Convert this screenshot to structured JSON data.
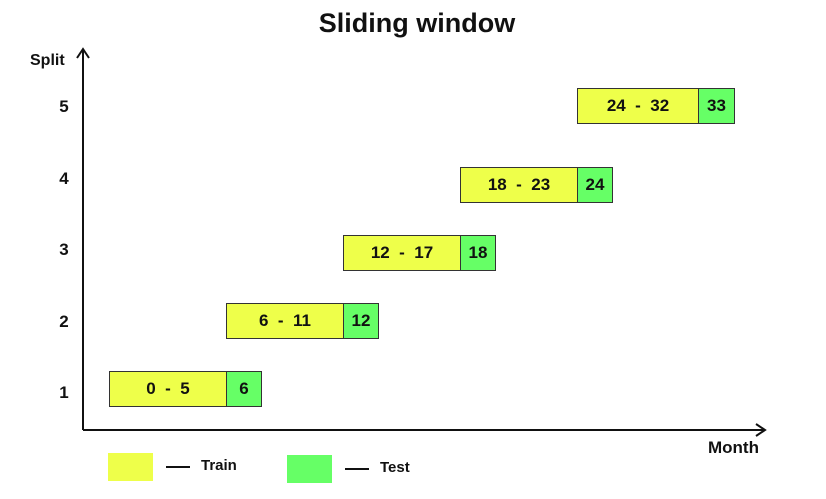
{
  "title": "Sliding window",
  "axes": {
    "ylabel": "Split",
    "xlabel": "Month"
  },
  "colors": {
    "train": "#eeff4a",
    "test": "#66ff66",
    "axis": "#111111",
    "border": "#333333"
  },
  "splits": [
    {
      "split": "1",
      "train_label": "0  -  5",
      "test_label": "6"
    },
    {
      "split": "2",
      "train_label": "6  -  11",
      "test_label": "12"
    },
    {
      "split": "3",
      "train_label": "12  -  17",
      "test_label": "18"
    },
    {
      "split": "4",
      "train_label": "18  -  23",
      "test_label": "24"
    },
    {
      "split": "5",
      "train_label": "24  -  32",
      "test_label": "33"
    }
  ],
  "legend": {
    "train": "Train",
    "test": "Test"
  }
}
